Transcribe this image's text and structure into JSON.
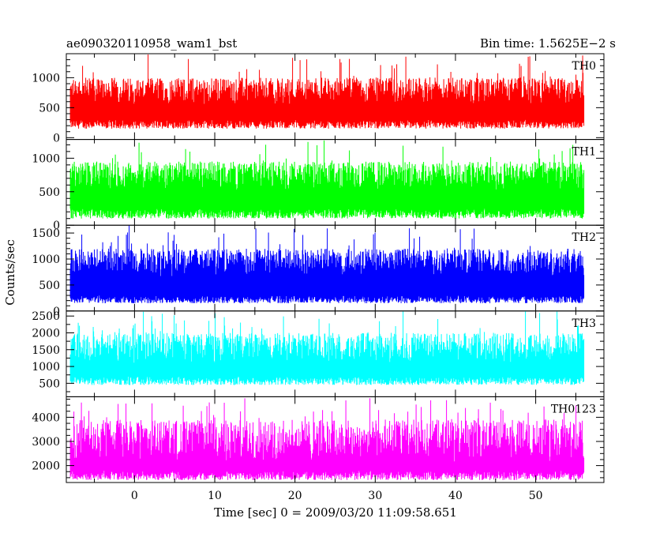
{
  "chart_data": {
    "type": "line",
    "title": "ae090320110958_wam1_bst",
    "subtitle": "Bin time: 1.5625E−2 s",
    "xlabel": "Time [sec] 0 = 2009/03/20 11:09:58.651",
    "ylabel": "Counts/sec",
    "xlim": [
      -8.5,
      58.5
    ],
    "x_range_data": [
      -8,
      56
    ],
    "xticks": [
      0,
      10,
      20,
      30,
      40,
      50
    ],
    "grid": false,
    "legend": "none",
    "panels": [
      {
        "name": "TH0",
        "color": "#ff0000",
        "ylim": [
          -30,
          1400
        ],
        "yticks": [
          0,
          500,
          1000
        ],
        "baseline": [
          150,
          300
        ],
        "typical_peak": 1000,
        "max_peak": 1400
      },
      {
        "name": "TH1",
        "color": "#00ff00",
        "ylim": [
          0,
          1280
        ],
        "yticks": [
          0,
          500,
          1000
        ],
        "baseline": [
          100,
          250
        ],
        "typical_peak": 950,
        "max_peak": 1270
      },
      {
        "name": "TH2",
        "color": "#0000ff",
        "ylim": [
          0,
          1650
        ],
        "yticks": [
          0,
          500,
          1000,
          1500
        ],
        "baseline": [
          150,
          300
        ],
        "typical_peak": 1200,
        "max_peak": 1650
      },
      {
        "name": "TH3",
        "color": "#00ffff",
        "ylim": [
          100,
          2650
        ],
        "yticks": [
          500,
          1000,
          1500,
          2000,
          2500
        ],
        "baseline": [
          450,
          700
        ],
        "typical_peak": 2000,
        "max_peak": 2650
      },
      {
        "name": "TH0123",
        "color": "#ff00ff",
        "ylim": [
          1300,
          4850
        ],
        "yticks": [
          2000,
          3000,
          4000
        ],
        "baseline": [
          1400,
          1800
        ],
        "typical_peak": 3900,
        "max_peak": 4800
      }
    ]
  }
}
